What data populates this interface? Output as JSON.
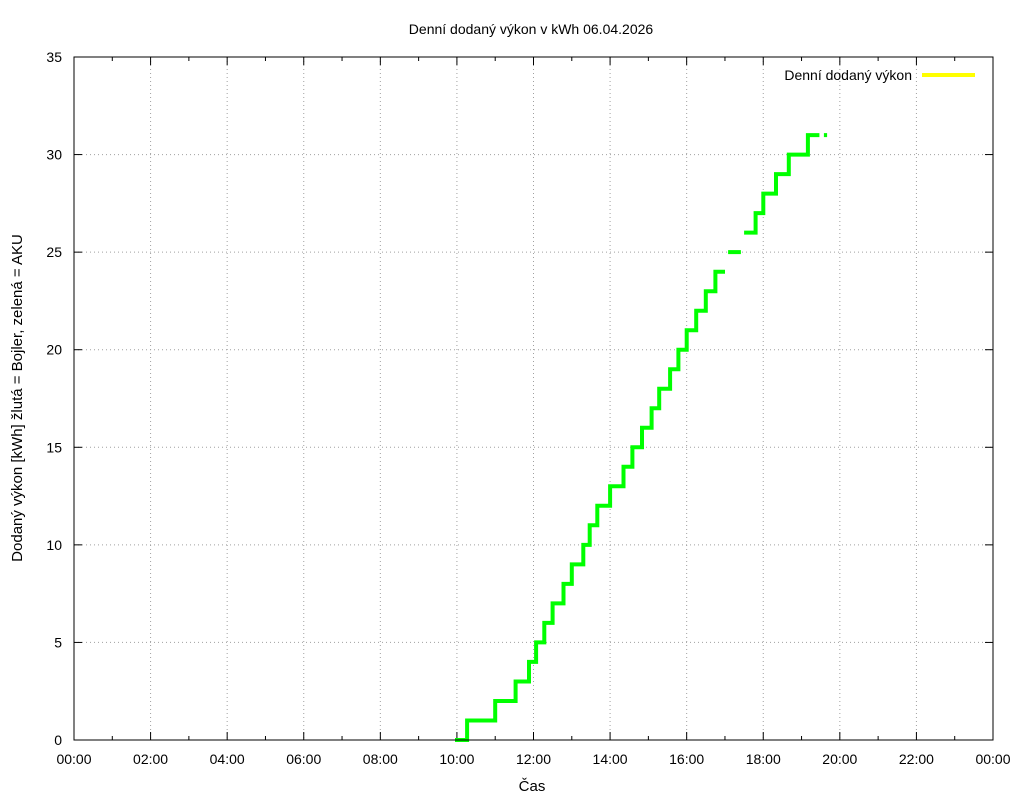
{
  "chart_data": {
    "type": "line",
    "title": "Denní dodaný výkon v kWh 06.04.2026",
    "xlabel": "Čas",
    "ylabel": "Dodaný výkon [kWh]  žlutá = Bojler, zelená = AKU",
    "xlim": [
      "00:00",
      "24:00"
    ],
    "ylim": [
      0,
      35
    ],
    "x_ticks": [
      "00:00",
      "02:00",
      "04:00",
      "06:00",
      "08:00",
      "10:00",
      "12:00",
      "14:00",
      "16:00",
      "18:00",
      "20:00",
      "22:00",
      "00:00"
    ],
    "y_ticks": [
      "0",
      "5",
      "10",
      "15",
      "20",
      "25",
      "30",
      "35"
    ],
    "grid": true,
    "legend_position": "top-right",
    "colors": {
      "bojler": "#ffff00",
      "aku": "#00ff00",
      "grid": "#a0a0a0"
    },
    "series": [
      {
        "name": "Denní dodaný výkon",
        "color": "#ffff00",
        "points": []
      },
      {
        "color": "#00ff00",
        "points": [
          [
            "09:57",
            0
          ],
          [
            "10:16",
            0
          ],
          [
            "10:16",
            1
          ],
          [
            "11:00",
            1
          ],
          [
            "11:00",
            2
          ],
          [
            "11:32",
            2
          ],
          [
            "11:32",
            3
          ],
          [
            "11:53",
            3
          ],
          [
            "11:53",
            4
          ],
          [
            "12:04",
            4
          ],
          [
            "12:04",
            5
          ],
          [
            "12:17",
            5
          ],
          [
            "12:17",
            6
          ],
          [
            "12:30",
            6
          ],
          [
            "12:30",
            7
          ],
          [
            "12:47",
            7
          ],
          [
            "12:47",
            8
          ],
          [
            "13:00",
            8
          ],
          [
            "13:00",
            9
          ],
          [
            "13:18",
            9
          ],
          [
            "13:18",
            10
          ],
          [
            "13:28",
            10
          ],
          [
            "13:28",
            11
          ],
          [
            "13:40",
            11
          ],
          [
            "13:40",
            12
          ],
          [
            "14:00",
            12
          ],
          [
            "14:00",
            13
          ],
          [
            "14:21",
            13
          ],
          [
            "14:21",
            14
          ],
          [
            "14:35",
            14
          ],
          [
            "14:35",
            15
          ],
          [
            "14:50",
            15
          ],
          [
            "14:50",
            16
          ],
          [
            "15:05",
            16
          ],
          [
            "15:05",
            17
          ],
          [
            "15:17",
            17
          ],
          [
            "15:17",
            18
          ],
          [
            "15:34",
            18
          ],
          [
            "15:34",
            19
          ],
          [
            "15:47",
            19
          ],
          [
            "15:47",
            20
          ],
          [
            "16:00",
            20
          ],
          [
            "16:00",
            21
          ],
          [
            "16:15",
            21
          ],
          [
            "16:15",
            22
          ],
          [
            "16:30",
            22
          ],
          [
            "16:30",
            23
          ],
          [
            "16:45",
            23
          ],
          [
            "16:45",
            24
          ],
          [
            "17:00",
            24
          ],
          null,
          [
            "17:05",
            25
          ],
          [
            "17:25",
            25
          ],
          null,
          [
            "17:30",
            26
          ],
          [
            "17:48",
            26
          ],
          [
            "17:48",
            27
          ],
          [
            "18:00",
            27
          ],
          [
            "18:00",
            28
          ],
          [
            "18:20",
            28
          ],
          [
            "18:20",
            29
          ],
          [
            "18:40",
            29
          ],
          [
            "18:40",
            30
          ],
          [
            "19:10",
            30
          ],
          [
            "19:10",
            31
          ],
          [
            "19:28",
            31
          ],
          null,
          [
            "19:35",
            31
          ],
          [
            "19:40",
            31
          ]
        ]
      }
    ]
  }
}
